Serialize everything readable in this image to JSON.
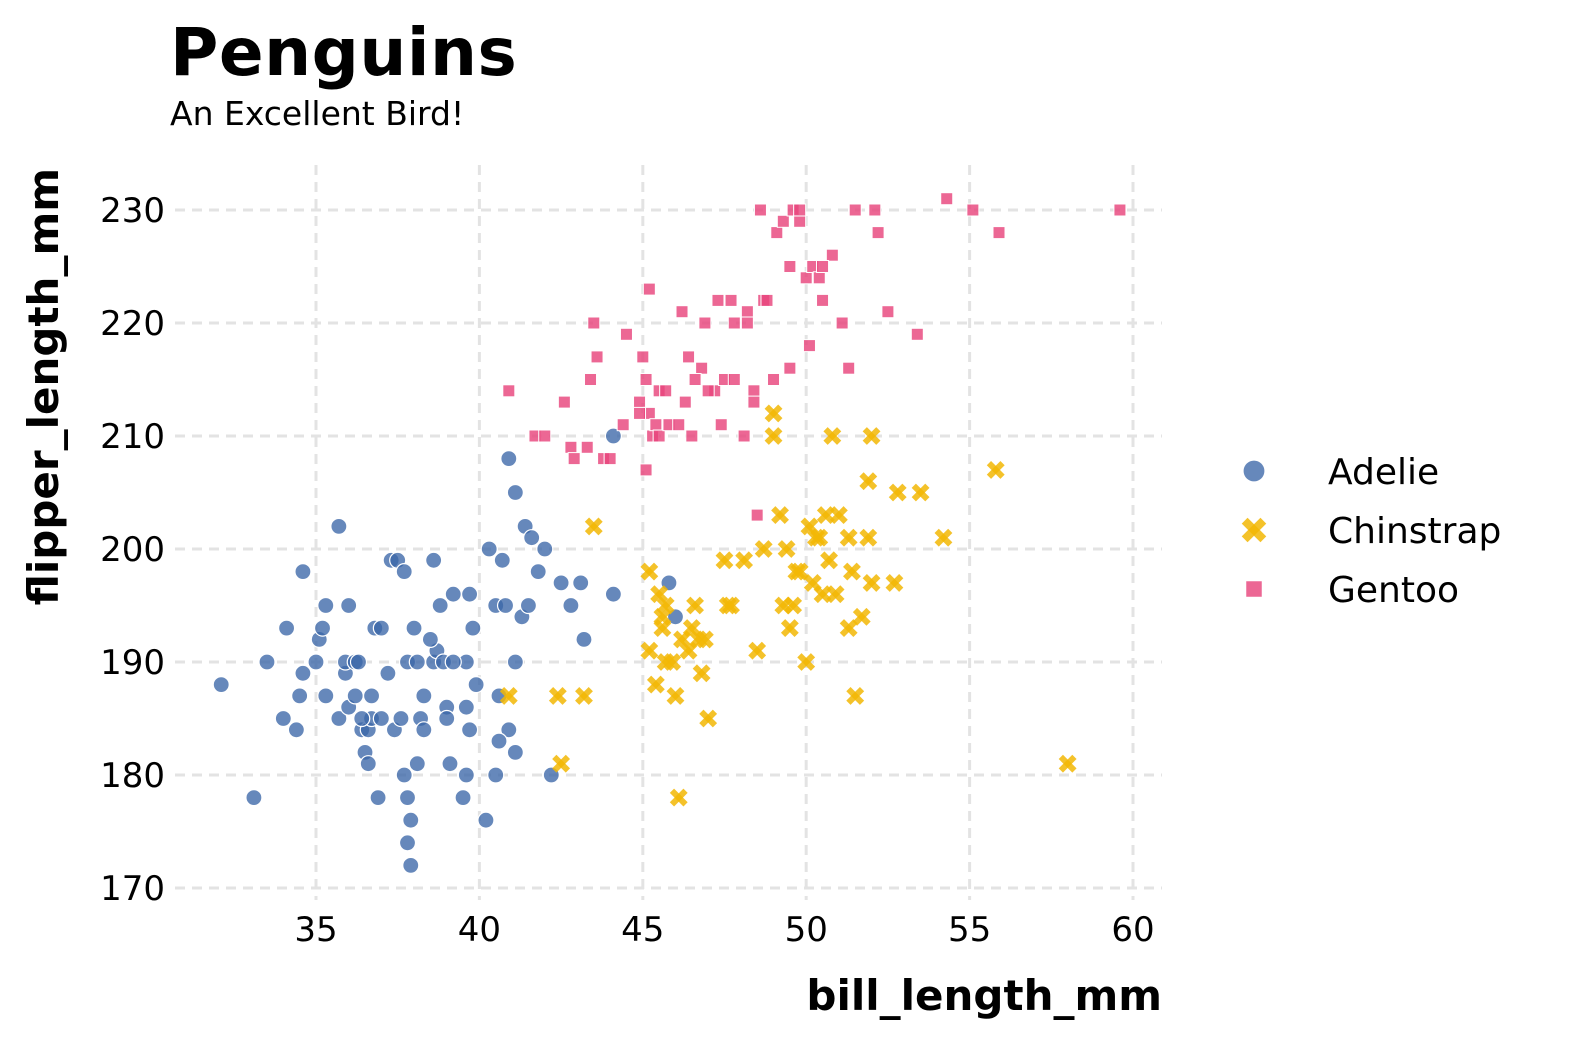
{
  "chart_data": {
    "type": "scatter",
    "title": "Penguins",
    "subtitle": "An Excellent Bird!",
    "xlabel": "bill_length_mm",
    "ylabel": "flipper_length_mm",
    "xlim": [
      31,
      61
    ],
    "ylim": [
      170,
      232
    ],
    "xticks": [
      35,
      40,
      45,
      50,
      55,
      60
    ],
    "yticks": [
      170,
      180,
      190,
      200,
      210,
      220,
      230
    ],
    "grid": true,
    "legend_position": "right",
    "series": [
      {
        "name": "Adelie",
        "color": "#3b66a8",
        "marker": "circle",
        "points": [
          [
            32.1,
            188
          ],
          [
            33.1,
            178
          ],
          [
            33.5,
            190
          ],
          [
            34.0,
            185
          ],
          [
            34.1,
            193
          ],
          [
            34.4,
            184
          ],
          [
            34.5,
            187
          ],
          [
            34.6,
            189
          ],
          [
            34.6,
            198
          ],
          [
            35.0,
            190
          ],
          [
            35.1,
            192
          ],
          [
            35.2,
            193
          ],
          [
            35.3,
            187
          ],
          [
            35.3,
            195
          ],
          [
            35.7,
            202
          ],
          [
            35.7,
            185
          ],
          [
            35.9,
            189
          ],
          [
            35.9,
            190
          ],
          [
            36.0,
            186
          ],
          [
            36.0,
            195
          ],
          [
            36.2,
            187
          ],
          [
            36.2,
            190
          ],
          [
            36.3,
            190
          ],
          [
            36.4,
            184
          ],
          [
            36.5,
            182
          ],
          [
            36.6,
            184
          ],
          [
            36.6,
            181
          ],
          [
            36.7,
            185
          ],
          [
            36.7,
            187
          ],
          [
            36.8,
            193
          ],
          [
            37.0,
            185
          ],
          [
            37.0,
            193
          ],
          [
            37.2,
            189
          ],
          [
            37.3,
            199
          ],
          [
            37.4,
            184
          ],
          [
            37.5,
            199
          ],
          [
            37.6,
            185
          ],
          [
            37.7,
            198
          ],
          [
            37.7,
            180
          ],
          [
            37.8,
            190
          ],
          [
            37.8,
            174
          ],
          [
            37.9,
            172
          ],
          [
            38.0,
            193
          ],
          [
            38.1,
            181
          ],
          [
            38.1,
            190
          ],
          [
            38.2,
            185
          ],
          [
            38.3,
            187
          ],
          [
            38.6,
            190
          ],
          [
            38.6,
            199
          ],
          [
            38.7,
            191
          ],
          [
            38.8,
            195
          ],
          [
            38.9,
            190
          ],
          [
            39.0,
            186
          ],
          [
            39.0,
            185
          ],
          [
            39.1,
            181
          ],
          [
            39.2,
            196
          ],
          [
            39.5,
            178
          ],
          [
            39.6,
            186
          ],
          [
            39.6,
            190
          ],
          [
            39.7,
            196
          ],
          [
            39.7,
            184
          ],
          [
            39.8,
            193
          ],
          [
            40.2,
            176
          ],
          [
            40.3,
            200
          ],
          [
            40.5,
            195
          ],
          [
            40.6,
            187
          ],
          [
            40.7,
            199
          ],
          [
            40.8,
            195
          ],
          [
            40.9,
            184
          ],
          [
            41.1,
            190
          ],
          [
            41.1,
            182
          ],
          [
            41.1,
            205
          ],
          [
            41.3,
            194
          ],
          [
            41.5,
            195
          ],
          [
            41.8,
            198
          ],
          [
            42.0,
            200
          ],
          [
            42.2,
            180
          ],
          [
            42.5,
            197
          ],
          [
            42.8,
            195
          ],
          [
            43.1,
            197
          ],
          [
            43.2,
            192
          ],
          [
            44.1,
            196
          ],
          [
            44.1,
            210
          ],
          [
            45.8,
            197
          ],
          [
            46.0,
            194
          ],
          [
            40.9,
            208
          ],
          [
            41.4,
            202
          ],
          [
            39.6,
            180
          ],
          [
            37.8,
            178
          ],
          [
            38.5,
            192
          ],
          [
            39.2,
            190
          ],
          [
            39.9,
            188
          ],
          [
            40.5,
            180
          ],
          [
            41.6,
            201
          ],
          [
            37.9,
            176
          ],
          [
            36.9,
            178
          ],
          [
            40.6,
            183
          ],
          [
            38.3,
            184
          ],
          [
            36.4,
            185
          ]
        ]
      },
      {
        "name": "Chinstrap",
        "color": "#f2b705",
        "marker": "x",
        "points": [
          [
            40.9,
            187
          ],
          [
            42.4,
            187
          ],
          [
            42.5,
            181
          ],
          [
            43.2,
            187
          ],
          [
            43.5,
            202
          ],
          [
            45.2,
            198
          ],
          [
            45.2,
            191
          ],
          [
            45.4,
            188
          ],
          [
            45.5,
            196
          ],
          [
            45.6,
            194
          ],
          [
            45.7,
            195
          ],
          [
            45.7,
            190
          ],
          [
            45.9,
            190
          ],
          [
            46.0,
            187
          ],
          [
            46.1,
            178
          ],
          [
            46.2,
            192
          ],
          [
            46.4,
            191
          ],
          [
            46.5,
            193
          ],
          [
            46.6,
            195
          ],
          [
            46.8,
            189
          ],
          [
            46.9,
            192
          ],
          [
            47.0,
            185
          ],
          [
            47.5,
            199
          ],
          [
            47.6,
            195
          ],
          [
            48.1,
            199
          ],
          [
            48.5,
            191
          ],
          [
            49.0,
            212
          ],
          [
            49.0,
            210
          ],
          [
            49.2,
            203
          ],
          [
            49.3,
            195
          ],
          [
            49.5,
            193
          ],
          [
            49.6,
            195
          ],
          [
            49.7,
            198
          ],
          [
            50.0,
            190
          ],
          [
            50.1,
            202
          ],
          [
            50.2,
            197
          ],
          [
            50.3,
            201
          ],
          [
            50.5,
            196
          ],
          [
            50.6,
            203
          ],
          [
            50.8,
            210
          ],
          [
            51.0,
            203
          ],
          [
            51.3,
            193
          ],
          [
            51.4,
            198
          ],
          [
            51.5,
            187
          ],
          [
            51.7,
            194
          ],
          [
            52.0,
            210
          ],
          [
            52.0,
            197
          ],
          [
            52.7,
            197
          ],
          [
            52.8,
            205
          ],
          [
            53.5,
            205
          ],
          [
            54.2,
            201
          ],
          [
            55.8,
            207
          ],
          [
            58.0,
            181
          ],
          [
            49.8,
            198
          ],
          [
            50.9,
            196
          ],
          [
            51.9,
            201
          ],
          [
            46.7,
            192
          ],
          [
            45.6,
            193
          ],
          [
            50.7,
            199
          ],
          [
            48.7,
            200
          ],
          [
            51.3,
            201
          ],
          [
            51.9,
            206
          ],
          [
            50.4,
            201
          ],
          [
            47.7,
            195
          ],
          [
            49.4,
            200
          ]
        ]
      },
      {
        "name": "Gentoo",
        "color": "#e8467c",
        "marker": "square",
        "points": [
          [
            40.9,
            214
          ],
          [
            41.7,
            210
          ],
          [
            42.0,
            210
          ],
          [
            42.6,
            213
          ],
          [
            42.8,
            209
          ],
          [
            42.9,
            208
          ],
          [
            43.3,
            209
          ],
          [
            43.5,
            220
          ],
          [
            43.6,
            217
          ],
          [
            43.8,
            208
          ],
          [
            44.0,
            208
          ],
          [
            44.5,
            219
          ],
          [
            44.9,
            213
          ],
          [
            45.0,
            217
          ],
          [
            45.1,
            215
          ],
          [
            45.2,
            212
          ],
          [
            45.3,
            210
          ],
          [
            45.4,
            211
          ],
          [
            45.5,
            214
          ],
          [
            45.5,
            210
          ],
          [
            45.7,
            214
          ],
          [
            45.8,
            211
          ],
          [
            46.1,
            211
          ],
          [
            46.2,
            221
          ],
          [
            46.4,
            217
          ],
          [
            46.5,
            210
          ],
          [
            46.8,
            216
          ],
          [
            47.2,
            214
          ],
          [
            47.3,
            222
          ],
          [
            47.5,
            215
          ],
          [
            47.7,
            222
          ],
          [
            47.8,
            215
          ],
          [
            48.1,
            210
          ],
          [
            48.2,
            221
          ],
          [
            48.4,
            214
          ],
          [
            48.5,
            203
          ],
          [
            48.7,
            222
          ],
          [
            48.8,
            222
          ],
          [
            49.0,
            215
          ],
          [
            49.1,
            228
          ],
          [
            49.3,
            229
          ],
          [
            49.5,
            216
          ],
          [
            49.6,
            230
          ],
          [
            49.8,
            229
          ],
          [
            50.0,
            224
          ],
          [
            50.2,
            225
          ],
          [
            50.5,
            222
          ],
          [
            50.8,
            226
          ],
          [
            51.1,
            220
          ],
          [
            51.3,
            216
          ],
          [
            52.1,
            230
          ],
          [
            52.2,
            228
          ],
          [
            52.5,
            221
          ],
          [
            53.4,
            219
          ],
          [
            54.3,
            231
          ],
          [
            55.1,
            230
          ],
          [
            55.9,
            228
          ],
          [
            59.6,
            230
          ],
          [
            45.1,
            207
          ],
          [
            47.4,
            211
          ],
          [
            48.6,
            230
          ],
          [
            49.8,
            230
          ],
          [
            45.2,
            223
          ],
          [
            46.6,
            215
          ],
          [
            47.8,
            220
          ],
          [
            48.4,
            213
          ],
          [
            50.4,
            224
          ],
          [
            50.5,
            225
          ],
          [
            51.5,
            230
          ],
          [
            46.9,
            220
          ],
          [
            44.9,
            212
          ],
          [
            48.2,
            220
          ],
          [
            50.1,
            218
          ],
          [
            49.5,
            225
          ],
          [
            46.3,
            213
          ],
          [
            43.4,
            215
          ],
          [
            44.4,
            211
          ],
          [
            47.0,
            214
          ]
        ]
      }
    ]
  }
}
